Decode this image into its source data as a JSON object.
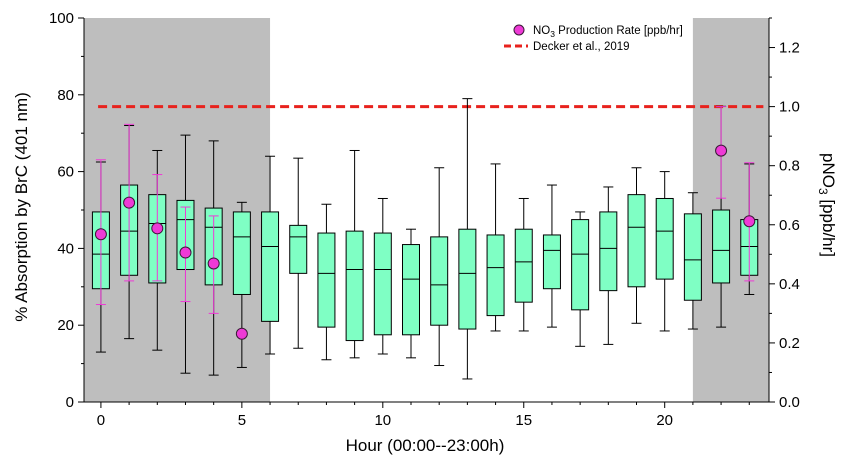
{
  "chart_data": {
    "type": "box",
    "xlabel": "Hour (00:00--23:00h)",
    "ylabel_left": "% Absorption by BrC (401 nm)",
    "ylabel_right": "pNO3 [ppb/hr]",
    "xlim": [
      -0.6,
      23.7
    ],
    "ylim_left": [
      0,
      100
    ],
    "ylim_right": [
      0,
      1.3
    ],
    "xticks": [
      0,
      5,
      10,
      15,
      20
    ],
    "yticks_left": [
      0,
      20,
      40,
      60,
      80,
      100
    ],
    "yticks_right": [
      "0.0",
      "0.2",
      "0.4",
      "0.6",
      "0.8",
      "1.0",
      "1.2"
    ],
    "night_shading": [
      [
        -0.6,
        6
      ],
      [
        21,
        23.7
      ]
    ],
    "box_color": "#7FFFC4",
    "night_color": "#BEBEBE",
    "box_series": {
      "hours": [
        0,
        1,
        2,
        3,
        4,
        5,
        6,
        7,
        8,
        9,
        10,
        11,
        12,
        13,
        14,
        15,
        16,
        17,
        18,
        19,
        20,
        21,
        22,
        23
      ],
      "whisker_low": [
        13,
        16.5,
        13.5,
        7.5,
        7,
        9,
        12.5,
        14,
        11,
        11.5,
        12.5,
        11.5,
        9.5,
        6,
        18.5,
        18.5,
        19.5,
        14.5,
        15,
        20.5,
        18.5,
        19,
        19.5,
        28
      ],
      "q1": [
        29.5,
        33,
        31,
        34.5,
        30.5,
        28,
        21,
        33.5,
        19.5,
        16,
        17.5,
        17.5,
        20,
        19,
        22.5,
        26,
        29.5,
        24,
        29,
        30,
        32,
        26.5,
        31,
        33
      ],
      "median": [
        38.5,
        44.5,
        46.5,
        47.5,
        45.5,
        43,
        40.5,
        43,
        33.5,
        34.5,
        34.5,
        32,
        30.5,
        33.5,
        35,
        36.5,
        39.5,
        38.5,
        40,
        45.5,
        44.5,
        37,
        39.5,
        40.5
      ],
      "q3": [
        49.5,
        56.5,
        54,
        52.5,
        50.5,
        49.5,
        49.5,
        46,
        44,
        44.5,
        44,
        41,
        43,
        45,
        43.5,
        45,
        43.5,
        47.5,
        49.5,
        54,
        53,
        49,
        50,
        47.5
      ],
      "whisker_high": [
        62.5,
        72,
        65.5,
        69.5,
        68,
        52,
        64,
        63.5,
        51.5,
        65.5,
        53,
        45,
        61,
        79,
        62,
        53,
        56.5,
        49.5,
        56,
        61,
        60,
        54.5,
        77,
        62
      ]
    },
    "no3_series": {
      "name": "NO3 Production Rate [ppb/hr]",
      "color": "#EE3AD6",
      "hours": [
        0,
        1,
        2,
        3,
        4,
        5,
        22,
        23
      ],
      "values": [
        0.568,
        0.675,
        0.588,
        0.506,
        0.469,
        0.231,
        0.851,
        0.612
      ],
      "err_low": [
        0.33,
        0.41,
        0.41,
        0.34,
        0.3,
        0.23,
        0.69,
        0.41
      ],
      "err_high": [
        0.82,
        0.94,
        0.77,
        0.66,
        0.63,
        0.23,
        1.0,
        0.81
      ]
    },
    "reference_line": {
      "name": "Decker et al., 2019",
      "value_right": 1.0,
      "color": "#E8221D"
    },
    "legend_position": "top-right"
  }
}
